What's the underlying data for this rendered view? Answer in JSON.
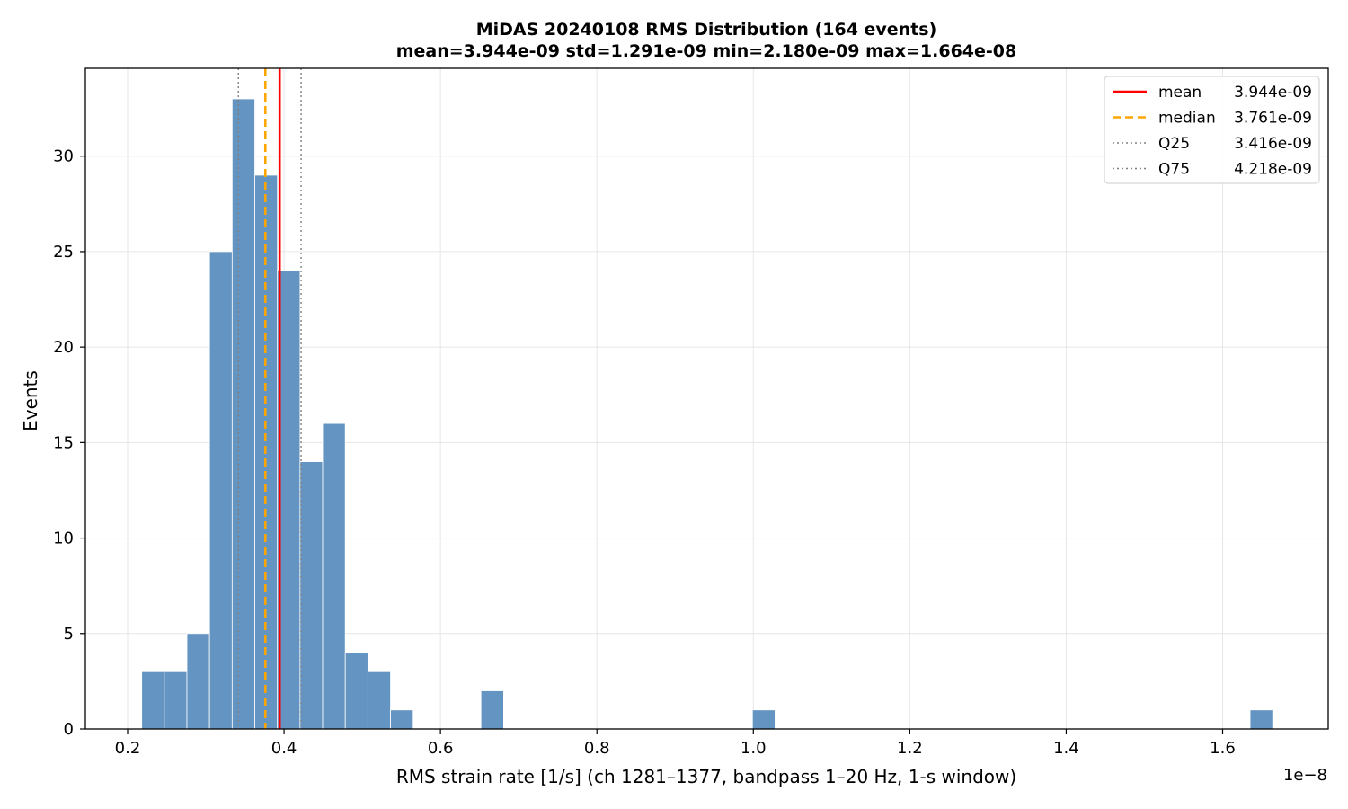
{
  "chart_data": {
    "type": "bar",
    "title": "MiDAS 20240108  RMS Distribution  (164 events)",
    "subtitle": "mean=3.944e-09  std=1.291e-09  min=2.180e-09  max=1.664e-08",
    "xlabel": "RMS strain rate [1/s]  (ch 1281–1377, bandpass 1–20 Hz, 1-s window)",
    "ylabel": "Events",
    "x_offset_label": "1e−8",
    "xlim": [
      0.146,
      1.735
    ],
    "ylim": [
      0,
      34.6
    ],
    "grid": true,
    "legend_placement": "top-right",
    "x_ticks": [
      0.2,
      0.4,
      0.6,
      0.8,
      1.0,
      1.2,
      1.4,
      1.6
    ],
    "x_tick_labels": [
      "0.2",
      "0.4",
      "0.6",
      "0.8",
      "1.0",
      "1.2",
      "1.4",
      "1.6"
    ],
    "y_ticks": [
      0,
      5,
      10,
      15,
      20,
      25,
      30
    ],
    "y_tick_labels": [
      "0",
      "5",
      "10",
      "15",
      "20",
      "25",
      "30"
    ],
    "bin_width": 0.02892,
    "bins": [
      {
        "x0": 0.218,
        "count": 3
      },
      {
        "x0": 0.24692,
        "count": 3
      },
      {
        "x0": 0.27584,
        "count": 5
      },
      {
        "x0": 0.30476,
        "count": 25
      },
      {
        "x0": 0.33368,
        "count": 33
      },
      {
        "x0": 0.3626,
        "count": 29
      },
      {
        "x0": 0.39152,
        "count": 24
      },
      {
        "x0": 0.42044,
        "count": 14
      },
      {
        "x0": 0.44936,
        "count": 16
      },
      {
        "x0": 0.47828,
        "count": 4
      },
      {
        "x0": 0.5072,
        "count": 3
      },
      {
        "x0": 0.53612,
        "count": 1
      },
      {
        "x0": 0.6518,
        "count": 2
      },
      {
        "x0": 0.99884,
        "count": 1
      },
      {
        "x0": 1.63508,
        "count": 1
      }
    ],
    "bar_color": "#6394c2",
    "reference_lines": [
      {
        "label": "mean",
        "value_text": "3.944e-09",
        "x": 0.3944,
        "color": "#ff0000",
        "style": "solid"
      },
      {
        "label": "median",
        "value_text": "3.761e-09",
        "x": 0.3761,
        "color": "#ffa500",
        "style": "dashed"
      },
      {
        "label": "Q25",
        "value_text": "3.416e-09",
        "x": 0.3416,
        "color": "#808080",
        "style": "dotted"
      },
      {
        "label": "Q75",
        "value_text": "4.218e-09",
        "x": 0.4218,
        "color": "#808080",
        "style": "dotted"
      }
    ]
  }
}
